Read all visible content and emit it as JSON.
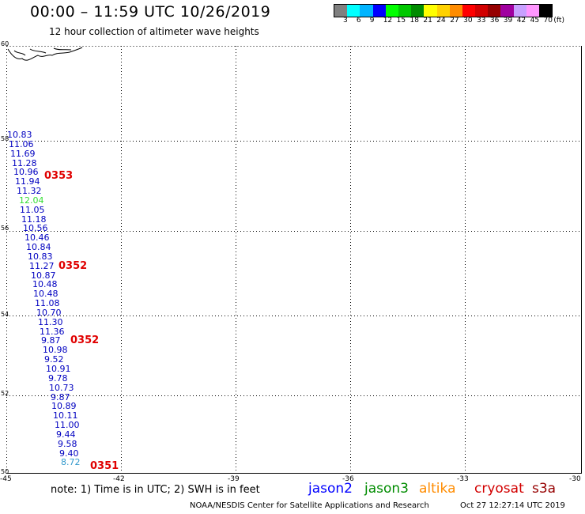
{
  "header": {
    "title": "00:00 – 11:59 UTC 10/26/2019",
    "subtitle": "12 hour collection of altimeter wave heights"
  },
  "legend": {
    "colors": [
      "#808080",
      "#00ffff",
      "#00b4ff",
      "#0000ff",
      "#00ff00",
      "#00c800",
      "#008c00",
      "#ffff00",
      "#ffd200",
      "#ff8c00",
      "#ff0000",
      "#d20000",
      "#960000",
      "#a000a0",
      "#c8a0ff",
      "#ff96ff",
      "#000000"
    ],
    "ticks": [
      "3",
      "6",
      "9",
      "12",
      "15",
      "18",
      "21",
      "24",
      "27",
      "30",
      "33",
      "36",
      "39",
      "42",
      "45",
      "70"
    ],
    "unit": "(ft)"
  },
  "map": {
    "lat_labels": [
      "60",
      "58",
      "56",
      "54",
      "52",
      "50"
    ],
    "lon_labels": [
      "-45",
      "-42",
      "-39",
      "-36",
      "-33",
      "-30"
    ]
  },
  "observations": [
    {
      "v": "10.83",
      "c": "#0000c0"
    },
    {
      "v": "11.06",
      "c": "#0000c0"
    },
    {
      "v": "11.69",
      "c": "#0000c0"
    },
    {
      "v": "11.28",
      "c": "#0000c0"
    },
    {
      "v": "10.96",
      "c": "#0000c0"
    },
    {
      "v": "11.94",
      "c": "#0000c0"
    },
    {
      "v": "11.32",
      "c": "#0000c0"
    },
    {
      "v": "12.04",
      "c": "#33dd33"
    },
    {
      "v": "11.05",
      "c": "#0000c0"
    },
    {
      "v": "11.18",
      "c": "#0000c0"
    },
    {
      "v": "10.56",
      "c": "#0000c0"
    },
    {
      "v": "10.46",
      "c": "#0000c0"
    },
    {
      "v": "10.84",
      "c": "#0000c0"
    },
    {
      "v": "10.83",
      "c": "#0000c0"
    },
    {
      "v": "11.27",
      "c": "#0000c0"
    },
    {
      "v": "10.87",
      "c": "#0000c0"
    },
    {
      "v": "10.48",
      "c": "#0000c0"
    },
    {
      "v": "10.48",
      "c": "#0000c0"
    },
    {
      "v": "11.08",
      "c": "#0000c0"
    },
    {
      "v": "10.70",
      "c": "#0000c0"
    },
    {
      "v": "11.30",
      "c": "#0000c0"
    },
    {
      "v": "11.36",
      "c": "#0000c0"
    },
    {
      "v": "9.87",
      "c": "#0000c0"
    },
    {
      "v": "10.98",
      "c": "#0000c0"
    },
    {
      "v": "9.52",
      "c": "#0000c0"
    },
    {
      "v": "10.91",
      "c": "#0000c0"
    },
    {
      "v": "9.78",
      "c": "#0000c0"
    },
    {
      "v": "10.73",
      "c": "#0000c0"
    },
    {
      "v": "9.87",
      "c": "#0000c0"
    },
    {
      "v": "10.89",
      "c": "#0000c0"
    },
    {
      "v": "10.11",
      "c": "#0000c0"
    },
    {
      "v": "11.00",
      "c": "#0000c0"
    },
    {
      "v": "9.44",
      "c": "#0000c0"
    },
    {
      "v": "9.58",
      "c": "#0000c0"
    },
    {
      "v": "9.40",
      "c": "#0000c0"
    },
    {
      "v": "8.72",
      "c": "#3399cc"
    }
  ],
  "pass_labels": [
    "0353",
    "0352",
    "0352",
    "0351"
  ],
  "footer": {
    "note": "note: 1) Time is in UTC; 2) SWH is in feet",
    "satellites": [
      {
        "name": "jason2",
        "color": "#0000ff"
      },
      {
        "name": "jason3",
        "color": "#008c00"
      },
      {
        "name": "altika",
        "color": "#ff8c00"
      },
      {
        "name": "cryosat",
        "color": "#d20000"
      },
      {
        "name": "s3a",
        "color": "#960000"
      }
    ],
    "credit": "NOAA/NESDIS Center for Satellite Applications and Research",
    "timestamp": "Oct 27 12:27:14 UTC 2019"
  }
}
